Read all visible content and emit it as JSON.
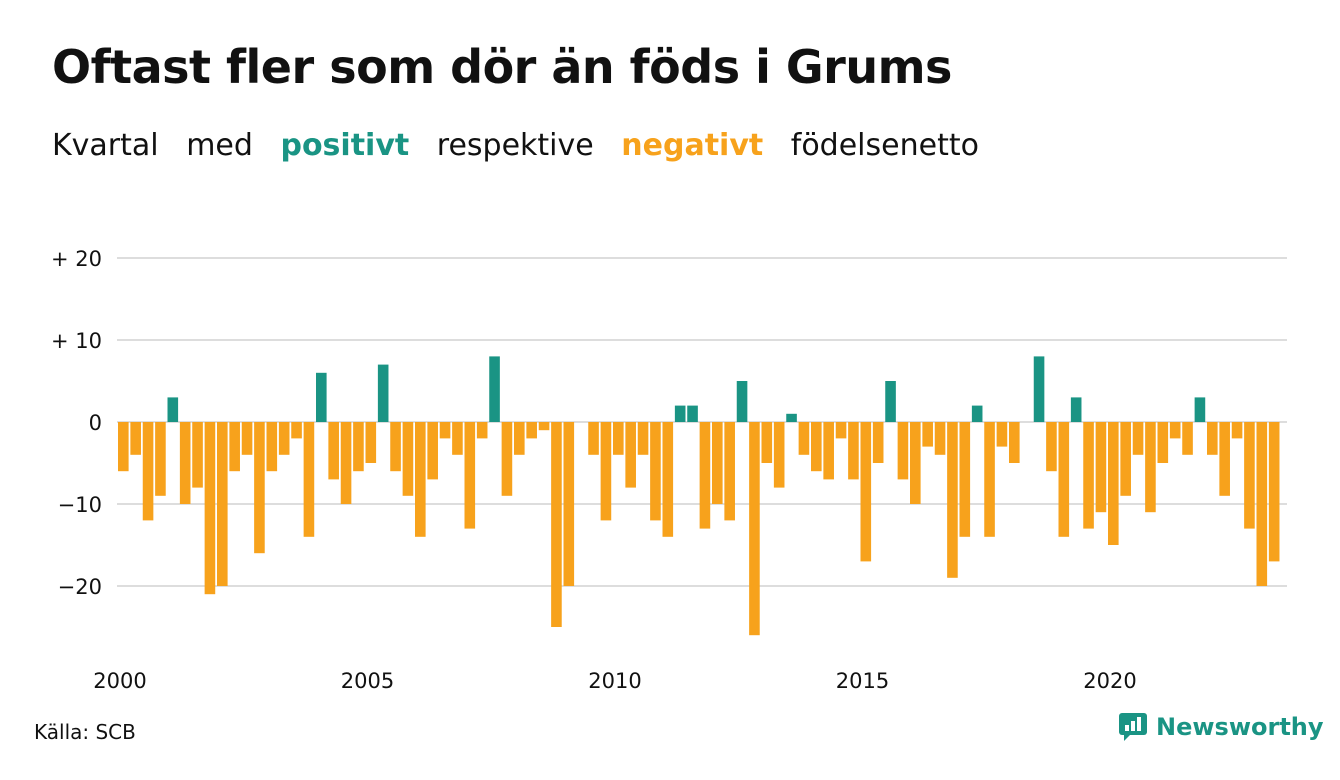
{
  "header": {
    "title": "Oftast fler som dör än föds i Grums",
    "subtitle_parts": [
      "Kvartal",
      "med",
      "positivt",
      "respektive",
      "negativt",
      "födelsenetto"
    ]
  },
  "footer": {
    "source": "Källa: SCB",
    "brand": "Newsworthy"
  },
  "colors": {
    "positive": "#1a9484",
    "negative": "#f7a21c",
    "grid": "#dddddd",
    "text": "#111111"
  },
  "chart_data": {
    "type": "bar",
    "title": "Oftast fler som dör än föds i Grums",
    "x_start": 2000,
    "x_step": 0.25,
    "x_ticks": [
      "2000",
      "2005",
      "2010",
      "2015",
      "2020"
    ],
    "y_ticks": [
      "+ 20",
      "+ 10",
      "0",
      "−10",
      "−20"
    ],
    "y_tick_values": [
      20,
      10,
      0,
      -10,
      -20
    ],
    "ylim": [
      -28,
      20
    ],
    "grid": true,
    "values": [
      -6,
      -4,
      -12,
      -9,
      3,
      -10,
      -8,
      -21,
      -20,
      -6,
      -4,
      -16,
      -6,
      -4,
      -2,
      -14,
      6,
      -7,
      -10,
      -6,
      -5,
      7,
      -6,
      -9,
      -14,
      -7,
      -2,
      -4,
      -13,
      -2,
      8,
      -9,
      -4,
      -2,
      -1,
      -25,
      -20,
      0,
      -4,
      -12,
      -4,
      -8,
      -4,
      -12,
      -14,
      2,
      2,
      -13,
      -10,
      -12,
      5,
      -26,
      -5,
      -8,
      1,
      -4,
      -6,
      -7,
      -2,
      -7,
      -17,
      -5,
      5,
      -7,
      -10,
      -3,
      -4,
      -19,
      -14,
      2,
      -14,
      -3,
      -5,
      0,
      8,
      -6,
      -14,
      3,
      -13,
      -11,
      -15,
      -9,
      -4,
      -11,
      -5,
      -2,
      -4,
      3,
      -4,
      -9,
      -2,
      -13,
      -20,
      -17
    ]
  }
}
